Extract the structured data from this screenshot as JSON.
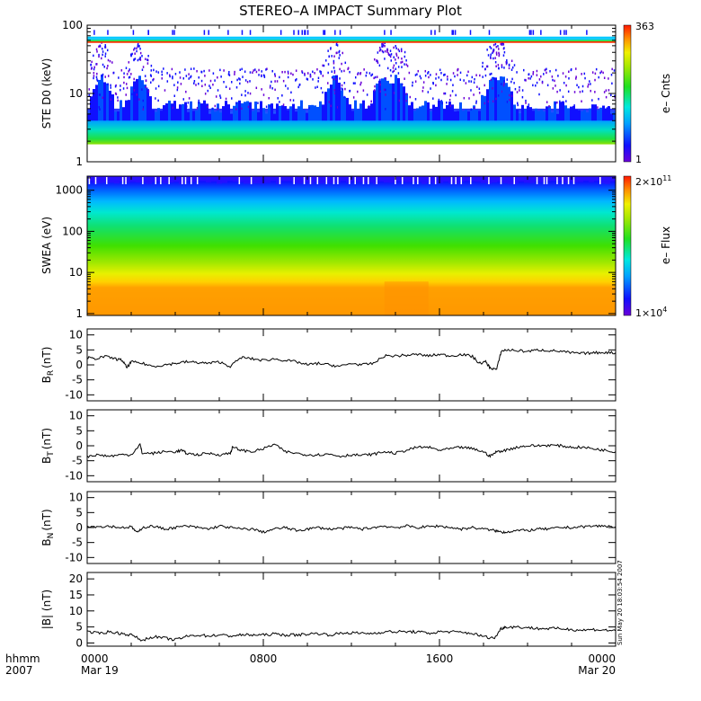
{
  "title": "STEREO–A IMPACT Summary Plot",
  "timestamp": "Sun May 20 18:03:54 2007",
  "x_axis": {
    "corner_top": "hhmm",
    "corner_bottom": "2007",
    "ticks": [
      {
        "hour": 0,
        "top": "0000",
        "bottom": "Mar 19"
      },
      {
        "hour": 8,
        "top": "0800",
        "bottom": ""
      },
      {
        "hour": 16,
        "top": "1600",
        "bottom": ""
      },
      {
        "hour": 24,
        "top": "0000",
        "bottom": "Mar 20"
      }
    ],
    "range_hours": [
      0,
      24
    ]
  },
  "chart_data": [
    {
      "type": "heatmap",
      "panel": "ste",
      "ylabel": "STE D0 (keV)",
      "yscale": "log",
      "ylim": [
        1,
        100
      ],
      "yticks": [
        "1",
        "10",
        "100"
      ],
      "colorbar": {
        "label": "e– Cnts",
        "max_label": "363",
        "min_label": "1",
        "min": 1,
        "max": 363
      },
      "bands": [
        {
          "energy_kev": [
            55,
            58
          ],
          "level": 0.95
        },
        {
          "energy_kev": [
            58,
            61
          ],
          "level": 0.55
        },
        {
          "energy_kev": [
            61,
            64
          ],
          "level": 0.45
        },
        {
          "energy_kev": [
            64,
            68
          ],
          "level": 0.5
        }
      ],
      "enhancements_hours": [
        0.6,
        2.3,
        11.2,
        13.4,
        14.0,
        18.4,
        18.8
      ]
    },
    {
      "type": "heatmap",
      "panel": "swea",
      "ylabel": "SWEA (eV)",
      "yscale": "log",
      "ylim": [
        0.9,
        2200
      ],
      "yticks": [
        "1",
        "10",
        "100",
        "1000"
      ],
      "colorbar": {
        "label": "e– Flux",
        "max_label": "2×10",
        "max_exp": "11",
        "min_label": "1×10",
        "min_exp": "4",
        "min": 10000,
        "max": 200000000000
      }
    },
    {
      "type": "line",
      "panel": "br",
      "ylabel": "B",
      "ysub": "R",
      "yunit": "(nT)",
      "ylim": [
        -12,
        12
      ],
      "yticks": [
        10,
        5,
        0,
        -5,
        -10
      ],
      "x": [
        0,
        0.3,
        0.8,
        1.3,
        1.6,
        1.8,
        2.0,
        2.5,
        3.0,
        3.5,
        4.0,
        4.5,
        5.0,
        5.5,
        6.0,
        6.5,
        7.0,
        7.5,
        8.0,
        8.5,
        9.0,
        9.5,
        10.0,
        10.5,
        11.0,
        11.5,
        12.0,
        12.5,
        13.0,
        13.5,
        14.0,
        14.5,
        15.0,
        15.5,
        16.0,
        16.5,
        17.0,
        17.5,
        17.8,
        18.1,
        18.3,
        18.6,
        18.8,
        19.0,
        19.5,
        20.0,
        20.5,
        21.0,
        21.5,
        22.0,
        22.5,
        23.0,
        23.5,
        24.0
      ],
      "y": [
        2.5,
        2.0,
        2.8,
        2.0,
        1.5,
        -1.0,
        1.0,
        0.5,
        -0.5,
        0.0,
        0.5,
        1.0,
        0.8,
        0.5,
        1.0,
        -0.5,
        2.5,
        2.0,
        1.5,
        2.0,
        1.5,
        1.0,
        0.0,
        0.5,
        0.0,
        -0.5,
        0.5,
        0.0,
        0.5,
        3.0,
        3.0,
        3.2,
        3.5,
        3.0,
        3.5,
        3.0,
        3.5,
        2.8,
        0.5,
        1.0,
        -1.0,
        -1.5,
        4.5,
        5.0,
        4.8,
        4.5,
        5.0,
        4.8,
        4.5,
        4.0,
        3.8,
        4.0,
        4.2,
        4.0
      ]
    },
    {
      "type": "line",
      "panel": "bt",
      "ylabel": "B",
      "ysub": "T",
      "yunit": "(nT)",
      "ylim": [
        -12,
        12
      ],
      "yticks": [
        10,
        5,
        0,
        -5,
        -10
      ],
      "x": [
        0,
        0.5,
        1.0,
        1.5,
        2.0,
        2.4,
        2.5,
        3.0,
        3.5,
        4.0,
        4.3,
        4.5,
        5.0,
        5.5,
        6.0,
        6.5,
        6.6,
        7.0,
        7.5,
        8.0,
        8.5,
        9.0,
        9.5,
        10.0,
        10.5,
        11.0,
        11.5,
        12.0,
        12.5,
        13.0,
        13.5,
        14.0,
        14.5,
        15.0,
        15.5,
        16.0,
        16.5,
        17.0,
        17.5,
        18.0,
        18.3,
        18.6,
        19.0,
        19.5,
        20.0,
        20.5,
        21.0,
        21.5,
        22.0,
        22.5,
        23.0,
        23.5,
        24.0
      ],
      "y": [
        -3.5,
        -3.0,
        -3.5,
        -3.0,
        -3.0,
        0.5,
        -2.5,
        -2.5,
        -2.0,
        -2.0,
        -1.5,
        -2.5,
        -3.0,
        -2.5,
        -3.0,
        -2.5,
        -0.5,
        -1.5,
        -2.0,
        -1.0,
        0.5,
        -2.0,
        -2.5,
        -3.0,
        -3.0,
        -2.8,
        -3.5,
        -3.0,
        -3.2,
        -2.8,
        -2.0,
        -2.5,
        -1.5,
        -0.5,
        -0.5,
        -1.5,
        -1.0,
        -0.5,
        -1.0,
        -2.0,
        -3.5,
        -2.0,
        -1.5,
        -0.5,
        0.0,
        0.0,
        0.2,
        0.0,
        -0.5,
        -0.5,
        -1.0,
        -1.5,
        -2.0
      ]
    },
    {
      "type": "line",
      "panel": "bn",
      "ylabel": "B",
      "ysub": "N",
      "yunit": "(nT)",
      "ylim": [
        -12,
        12
      ],
      "yticks": [
        10,
        5,
        0,
        -5,
        -10
      ],
      "x": [
        0,
        0.5,
        1.0,
        1.5,
        2.0,
        2.3,
        2.5,
        3.0,
        3.5,
        4.0,
        4.5,
        5.0,
        5.5,
        6.0,
        6.5,
        7.0,
        7.5,
        8.0,
        8.5,
        9.0,
        9.5,
        10.0,
        10.5,
        11.0,
        11.5,
        12.0,
        12.5,
        13.0,
        13.5,
        14.0,
        14.5,
        15.0,
        15.5,
        16.0,
        16.5,
        17.0,
        17.5,
        18.0,
        18.5,
        18.8,
        19.0,
        19.5,
        20.0,
        20.5,
        21.0,
        21.5,
        22.0,
        22.5,
        23.0,
        23.5,
        24.0
      ],
      "y": [
        0.5,
        0.3,
        0.5,
        0.0,
        0.2,
        -1.8,
        0.0,
        0.5,
        -0.5,
        0.0,
        0.5,
        0.0,
        -0.5,
        0.5,
        0.0,
        -0.5,
        -0.5,
        -1.5,
        -0.5,
        0.0,
        -1.0,
        -0.5,
        0.0,
        -0.5,
        -0.3,
        0.0,
        -0.5,
        0.0,
        0.5,
        0.0,
        0.5,
        0.0,
        0.3,
        0.5,
        0.0,
        -0.5,
        0.0,
        -0.5,
        -1.0,
        -1.5,
        -1.5,
        -1.0,
        -1.0,
        -0.5,
        -0.5,
        0.0,
        0.0,
        0.3,
        0.5,
        0.5,
        0.3
      ]
    },
    {
      "type": "line",
      "panel": "bmag",
      "ylabel": "|B| (nT)",
      "ylim": [
        -1,
        22
      ],
      "yticks": [
        20,
        15,
        10,
        5,
        0
      ],
      "x": [
        0,
        0.5,
        1.0,
        1.5,
        2.0,
        2.5,
        3.0,
        3.5,
        4.0,
        4.5,
        5.0,
        5.5,
        6.0,
        6.5,
        7.0,
        7.5,
        8.0,
        8.5,
        9.0,
        9.5,
        10.0,
        10.5,
        11.0,
        11.5,
        12.0,
        12.5,
        13.0,
        13.5,
        14.0,
        14.5,
        15.0,
        15.5,
        16.0,
        16.5,
        17.0,
        17.5,
        18.0,
        18.5,
        18.8,
        19.0,
        19.5,
        20.0,
        20.5,
        21.0,
        21.5,
        22.0,
        22.5,
        23.0,
        23.5,
        24.0
      ],
      "y": [
        3.5,
        3.0,
        3.5,
        3.0,
        2.5,
        0.8,
        2.0,
        1.5,
        1.0,
        2.0,
        2.5,
        2.2,
        2.5,
        2.2,
        2.5,
        2.5,
        2.5,
        2.8,
        2.5,
        2.5,
        2.8,
        3.0,
        2.5,
        3.0,
        3.2,
        3.0,
        3.0,
        3.5,
        3.5,
        3.5,
        3.5,
        3.0,
        3.5,
        3.5,
        3.3,
        3.0,
        2.0,
        1.5,
        4.5,
        5.0,
        5.0,
        4.8,
        4.5,
        4.5,
        4.5,
        4.2,
        4.0,
        4.2,
        4.0,
        3.8
      ]
    }
  ]
}
